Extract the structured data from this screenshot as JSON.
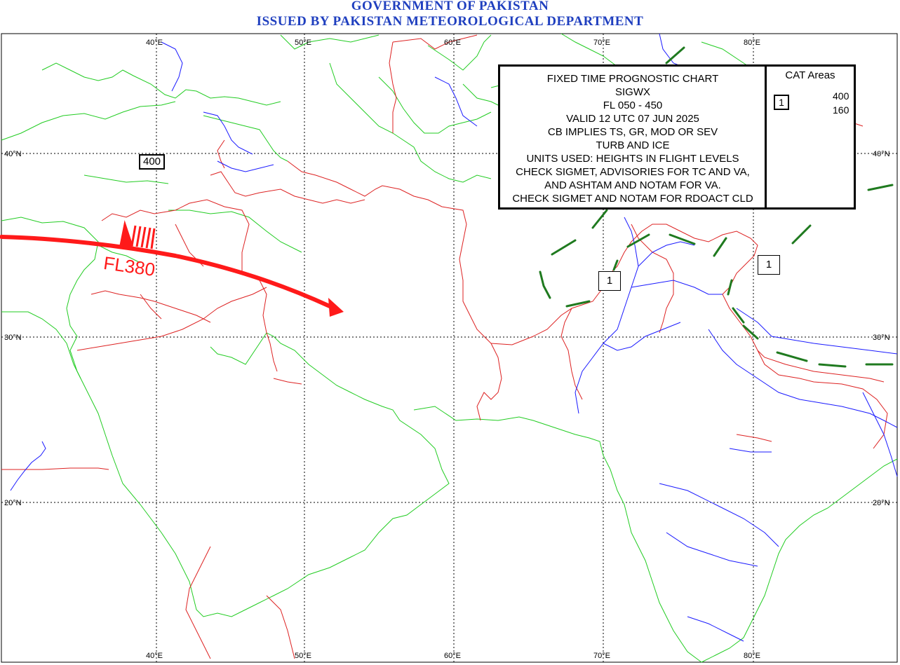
{
  "header": {
    "line1": "GOVERNMENT OF PAKISTAN",
    "line2": "ISSUED BY PAKISTAN METEOROLOGICAL DEPARTMENT"
  },
  "grid": {
    "longitudes_top": [
      "40°E",
      "50°E",
      "60°E",
      "70°E",
      "80°E"
    ],
    "longitudes_bottom": [
      "40°E",
      "50°E",
      "60°E",
      "70°E",
      "80°E"
    ],
    "latitudes_left": [
      "40°N",
      "30°N",
      "20°N"
    ],
    "latitudes_right": [
      "40°N",
      "30°N",
      "20°N"
    ]
  },
  "legend": {
    "lines": [
      "FIXED TIME PROGNOSTIC CHART",
      "SIGWX",
      "FL 050 - 450",
      "VALID 12 UTC 07 JUN 2025",
      "CB IMPLIES TS, GR, MOD OR SEV",
      "TURB AND ICE",
      "UNITS USED: HEIGHTS IN FLIGHT LEVELS",
      "CHECK SIGMET, ADVISORIES FOR TC AND VA,",
      "AND ASHTAM AND NOTAM FOR VA.",
      "CHECK SIGMET AND NOTAM FOR RDOACT CLD"
    ],
    "cat_title": "CAT Areas",
    "cat_area_id": "1",
    "cat_top": "400",
    "cat_bottom": "160"
  },
  "annotations": {
    "tropopause_box": "400",
    "jet_level": "FL380",
    "cat_area_label_1": "1",
    "cat_area_label_2": "1"
  },
  "colors": {
    "header": "#1f3fbf",
    "coastline": "#22cc22",
    "borders": "#dd2222",
    "rivers": "#1a1aff",
    "jet_stream": "#ff1a1a",
    "cat_boundary": "#1f7a1f"
  }
}
